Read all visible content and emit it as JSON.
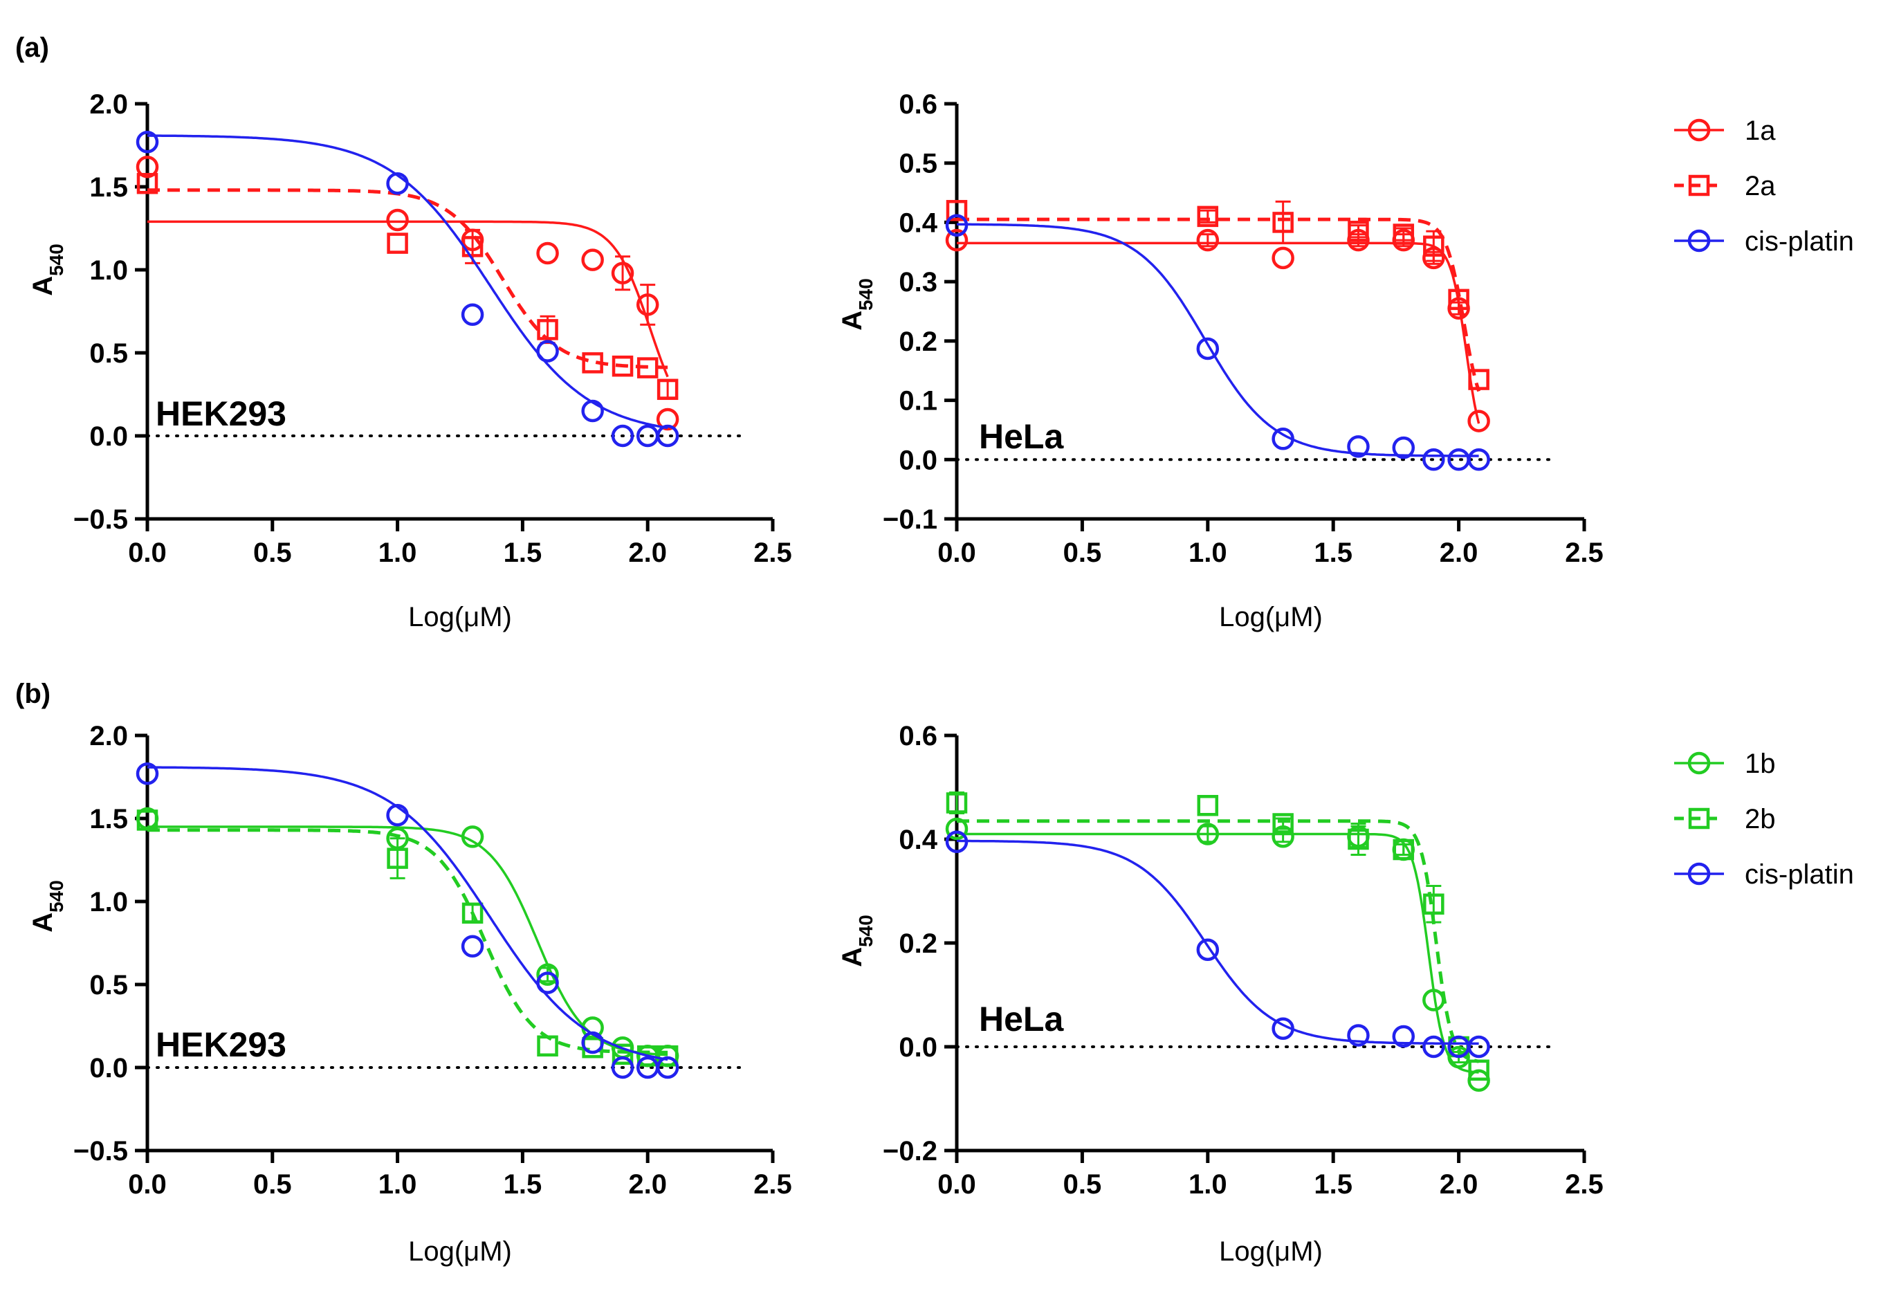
{
  "figure": {
    "panel_labels": [
      "(a)",
      "(b)"
    ],
    "colors": {
      "red": "#ff1a1a",
      "blue": "#2222ee",
      "green": "#22cc22"
    }
  },
  "legends": [
    {
      "entries": [
        {
          "label": "1a",
          "color": "#ff1a1a",
          "marker": "circle",
          "dashed": false
        },
        {
          "label": "2a",
          "color": "#ff1a1a",
          "marker": "square",
          "dashed": true
        },
        {
          "label": "cis-platin",
          "color": "#2222ee",
          "marker": "circle",
          "dashed": false
        }
      ]
    },
    {
      "entries": [
        {
          "label": "1b",
          "color": "#22cc22",
          "marker": "circle",
          "dashed": false
        },
        {
          "label": "2b",
          "color": "#22cc22",
          "marker": "square",
          "dashed": true
        },
        {
          "label": "cis-platin",
          "color": "#2222ee",
          "marker": "circle",
          "dashed": false
        }
      ]
    }
  ],
  "chart_data": [
    {
      "id": "a-hek293",
      "type": "scatter",
      "cell_line": "HEK293",
      "xlabel": "Log(μM)",
      "ylabel_main": "A",
      "ylabel_sub": "540",
      "xlim": [
        0,
        2.5
      ],
      "ylim": [
        -0.5,
        2.0
      ],
      "xticks": [
        "0.0",
        "0.5",
        "1.0",
        "1.5",
        "2.0",
        "2.5"
      ],
      "yticks": [
        "−0.5",
        "0.0",
        "0.5",
        "1.0",
        "1.5",
        "2.0"
      ],
      "ytick_values": [
        -0.5,
        0.0,
        0.5,
        1.0,
        1.5,
        2.0
      ],
      "series": [
        {
          "name": "1a",
          "color": "#ff1a1a",
          "marker": "circle",
          "dashed": false,
          "x": [
            0,
            1,
            1.3,
            1.6,
            1.78,
            1.9,
            2.0,
            2.08
          ],
          "y": [
            1.62,
            1.3,
            1.18,
            1.1,
            1.06,
            0.98,
            0.79,
            0.1
          ],
          "err": [
            0,
            0,
            0,
            0,
            0,
            0.1,
            0.12,
            0
          ],
          "fit": {
            "top": 1.29,
            "bottom": 0.0,
            "logIC50": 2.01,
            "hill": 6
          }
        },
        {
          "name": "2a",
          "color": "#ff1a1a",
          "marker": "square",
          "dashed": true,
          "x": [
            0,
            1,
            1.3,
            1.6,
            1.78,
            1.9,
            2.0,
            2.08
          ],
          "y": [
            1.52,
            1.16,
            1.14,
            0.64,
            0.44,
            0.42,
            0.41,
            0.28
          ],
          "err": [
            0,
            0,
            0.1,
            0.08,
            0,
            0,
            0,
            0.05
          ],
          "fit": {
            "top": 1.48,
            "bottom": 0.41,
            "logIC50": 1.42,
            "hill": 4
          }
        },
        {
          "name": "cis-platin",
          "color": "#2222ee",
          "marker": "circle",
          "dashed": false,
          "x": [
            0,
            1,
            1.3,
            1.6,
            1.78,
            1.9,
            2.0,
            2.08
          ],
          "y": [
            1.77,
            1.52,
            0.73,
            0.51,
            0.15,
            0.0,
            0.0,
            0.0
          ],
          "err": [
            0,
            0,
            0,
            0,
            0,
            0,
            0,
            0
          ],
          "fit": {
            "top": 1.81,
            "bottom": 0.0,
            "logIC50": 1.37,
            "hill": 2.2
          }
        }
      ]
    },
    {
      "id": "a-hela",
      "type": "scatter",
      "cell_line": "HeLa",
      "xlabel": "Log(μM)",
      "ylabel_main": "A",
      "ylabel_sub": "540",
      "xlim": [
        0,
        2.5
      ],
      "ylim": [
        -0.1,
        0.6
      ],
      "xticks": [
        "0.0",
        "0.5",
        "1.0",
        "1.5",
        "2.0",
        "2.5"
      ],
      "yticks": [
        "−0.1",
        "0.0",
        "0.1",
        "0.2",
        "0.3",
        "0.4",
        "0.5",
        "0.6"
      ],
      "ytick_values": [
        -0.1,
        0.0,
        0.1,
        0.2,
        0.3,
        0.4,
        0.5,
        0.6
      ],
      "series": [
        {
          "name": "1a",
          "color": "#ff1a1a",
          "marker": "circle",
          "dashed": false,
          "x": [
            0,
            1,
            1.3,
            1.6,
            1.78,
            1.9,
            2.0,
            2.08
          ],
          "y": [
            0.37,
            0.37,
            0.34,
            0.37,
            0.37,
            0.34,
            0.255,
            0.065
          ],
          "err": [
            0,
            0.01,
            0,
            0.01,
            0.01,
            0.01,
            0.01,
            0
          ],
          "fit": {
            "top": 0.365,
            "bottom": 0.0,
            "logIC50": 2.03,
            "hill": 14
          }
        },
        {
          "name": "2a",
          "color": "#ff1a1a",
          "marker": "square",
          "dashed": true,
          "x": [
            0,
            1,
            1.3,
            1.6,
            1.78,
            1.9,
            2.0,
            2.08
          ],
          "y": [
            0.42,
            0.41,
            0.4,
            0.385,
            0.38,
            0.36,
            0.27,
            0.135
          ],
          "err": [
            0,
            0.01,
            0.035,
            0.01,
            0.01,
            0.025,
            0.015,
            0
          ],
          "fit": {
            "top": 0.405,
            "bottom": 0.06,
            "logIC50": 2.02,
            "hill": 12
          }
        },
        {
          "name": "cis-platin",
          "color": "#2222ee",
          "marker": "circle",
          "dashed": false,
          "x": [
            0,
            1,
            1.3,
            1.6,
            1.78,
            1.9,
            2.0,
            2.08
          ],
          "y": [
            0.395,
            0.187,
            0.035,
            0.022,
            0.02,
            0.0,
            0.0,
            0.0
          ],
          "err": [
            0,
            0,
            0,
            0,
            0,
            0,
            0,
            0
          ],
          "fit": {
            "top": 0.397,
            "bottom": 0.006,
            "logIC50": 0.99,
            "hill": 3.2
          }
        }
      ]
    },
    {
      "id": "b-hek293",
      "type": "scatter",
      "cell_line": "HEK293",
      "xlabel": "Log(μM)",
      "ylabel_main": "A",
      "ylabel_sub": "540",
      "xlim": [
        0,
        2.5
      ],
      "ylim": [
        -0.5,
        2.0
      ],
      "xticks": [
        "0.0",
        "0.5",
        "1.0",
        "1.5",
        "2.0",
        "2.5"
      ],
      "yticks": [
        "−0.5",
        "0.0",
        "0.5",
        "1.0",
        "1.5",
        "2.0"
      ],
      "ytick_values": [
        -0.5,
        0.0,
        0.5,
        1.0,
        1.5,
        2.0
      ],
      "series": [
        {
          "name": "1b",
          "color": "#22cc22",
          "marker": "circle",
          "dashed": false,
          "x": [
            0,
            1,
            1.3,
            1.6,
            1.78,
            1.9,
            2.0,
            2.08
          ],
          "y": [
            1.5,
            1.38,
            1.39,
            0.56,
            0.24,
            0.12,
            0.07,
            0.07
          ],
          "err": [
            0,
            0,
            0,
            0.04,
            0,
            0,
            0,
            0
          ],
          "fit": {
            "top": 1.45,
            "bottom": 0.07,
            "logIC50": 1.56,
            "hill": 4.5
          }
        },
        {
          "name": "2b",
          "color": "#22cc22",
          "marker": "square",
          "dashed": true,
          "x": [
            0,
            1,
            1.3,
            1.6,
            1.78,
            1.9,
            2.0,
            2.08
          ],
          "y": [
            1.49,
            1.26,
            0.93,
            0.13,
            0.12,
            0.08,
            0.07,
            0.07
          ],
          "err": [
            0,
            0.12,
            0.05,
            0,
            0,
            0,
            0,
            0
          ],
          "fit": {
            "top": 1.43,
            "bottom": 0.09,
            "logIC50": 1.35,
            "hill": 4.5
          }
        },
        {
          "name": "cis-platin",
          "color": "#2222ee",
          "marker": "circle",
          "dashed": false,
          "x": [
            0,
            1,
            1.3,
            1.6,
            1.78,
            1.9,
            2.0,
            2.08
          ],
          "y": [
            1.77,
            1.52,
            0.73,
            0.51,
            0.15,
            0.0,
            0.0,
            0.0
          ],
          "err": [
            0,
            0,
            0,
            0,
            0,
            0,
            0,
            0
          ],
          "fit": {
            "top": 1.81,
            "bottom": 0.0,
            "logIC50": 1.37,
            "hill": 2.2
          }
        }
      ]
    },
    {
      "id": "b-hela",
      "type": "scatter",
      "cell_line": "HeLa",
      "xlabel": "Log(μM)",
      "ylabel_main": "A",
      "ylabel_sub": "540",
      "xlim": [
        0,
        2.5
      ],
      "ylim": [
        -0.2,
        0.6
      ],
      "xticks": [
        "0.0",
        "0.5",
        "1.0",
        "1.5",
        "2.0",
        "2.5"
      ],
      "yticks": [
        "−0.2",
        "0.0",
        "0.2",
        "0.4",
        "0.6"
      ],
      "ytick_values": [
        -0.2,
        0.0,
        0.2,
        0.4,
        0.6
      ],
      "series": [
        {
          "name": "1b",
          "color": "#22cc22",
          "marker": "circle",
          "dashed": false,
          "x": [
            0,
            1,
            1.3,
            1.6,
            1.78,
            1.9,
            2.0,
            2.08
          ],
          "y": [
            0.42,
            0.41,
            0.405,
            0.405,
            0.38,
            0.09,
            -0.02,
            -0.065
          ],
          "err": [
            0,
            0.015,
            0.01,
            0.02,
            0.01,
            0,
            0.01,
            0
          ],
          "fit": {
            "top": 0.41,
            "bottom": -0.05,
            "logIC50": 1.88,
            "hill": 14
          }
        },
        {
          "name": "2b",
          "color": "#22cc22",
          "marker": "square",
          "dashed": true,
          "x": [
            0,
            1,
            1.3,
            1.6,
            1.78,
            1.9,
            2.0,
            2.08
          ],
          "y": [
            0.47,
            0.465,
            0.43,
            0.4,
            0.38,
            0.275,
            0.0,
            -0.045
          ],
          "err": [
            0.02,
            0,
            0.01,
            0.03,
            0.01,
            0.035,
            0,
            0
          ],
          "fit": {
            "top": 0.435,
            "bottom": -0.03,
            "logIC50": 1.91,
            "hill": 14
          }
        },
        {
          "name": "cis-platin",
          "color": "#2222ee",
          "marker": "circle",
          "dashed": false,
          "x": [
            0,
            1,
            1.3,
            1.6,
            1.78,
            1.9,
            2.0,
            2.08
          ],
          "y": [
            0.395,
            0.187,
            0.035,
            0.022,
            0.02,
            0.0,
            0.0,
            0.0
          ],
          "err": [
            0,
            0,
            0,
            0,
            0,
            0,
            0,
            0
          ],
          "fit": {
            "top": 0.397,
            "bottom": 0.006,
            "logIC50": 0.99,
            "hill": 3.2
          }
        }
      ]
    }
  ]
}
